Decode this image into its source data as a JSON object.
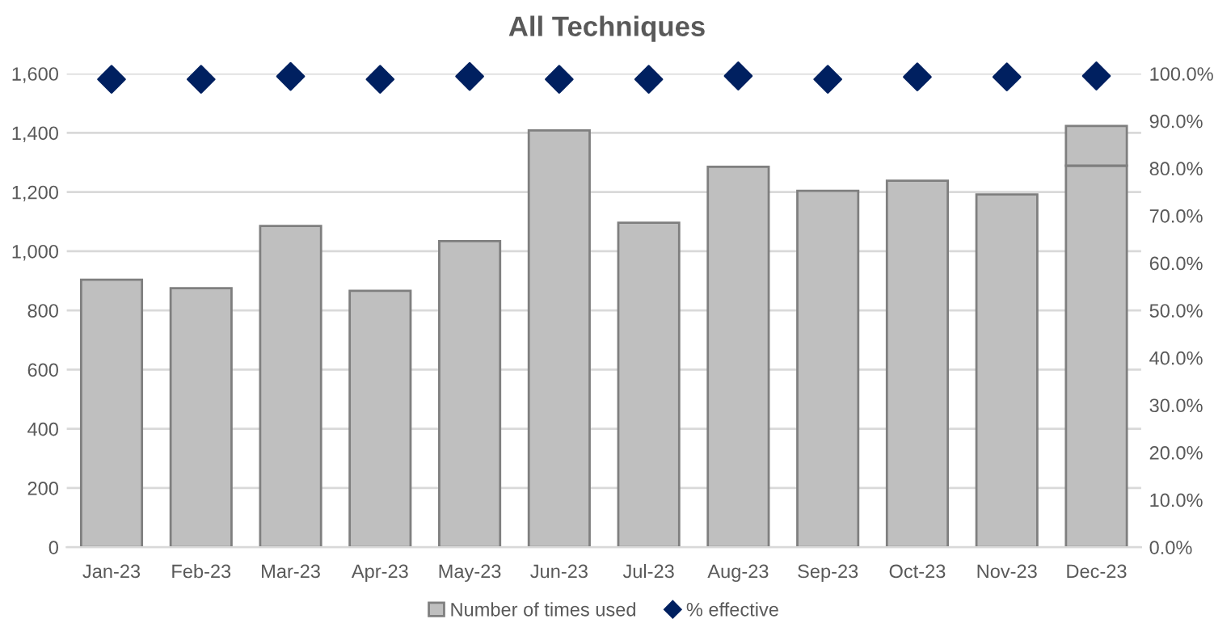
{
  "chart_data": {
    "type": "bar",
    "title": "All Techniques",
    "categories": [
      "Jan-23",
      "Feb-23",
      "Mar-23",
      "Apr-23",
      "May-23",
      "Jun-23",
      "Jul-23",
      "Aug-23",
      "Sep-23",
      "Oct-23",
      "Nov-23",
      "Dec-23"
    ],
    "stacked": true,
    "series": [
      {
        "name": "Number of times used",
        "color": "#bfbfbf",
        "values": [
          904,
          875,
          1085,
          866,
          1034,
          1408,
          1096,
          1285,
          1204,
          1238,
          1192,
          1289
        ]
      },
      {
        "color": "#bfbfbf",
        "values": [
          null,
          null,
          null,
          null,
          null,
          null,
          null,
          null,
          null,
          null,
          null,
          134
        ]
      },
      {
        "name": "% effective",
        "type": "scatter",
        "axis": "y2",
        "marker": "diamond",
        "color": "#002060",
        "values": [
          98.8,
          98.8,
          99.4,
          98.8,
          99.4,
          98.8,
          98.8,
          99.5,
          98.8,
          99.3,
          99.3,
          99.5
        ]
      }
    ],
    "ylim": [
      0,
      1600
    ],
    "yticks": [
      0,
      {
        "value": 200,
        "label": "200"
      },
      {
        "value": 400,
        "label": "400"
      },
      {
        "value": 600,
        "label": "600"
      },
      {
        "value": 800,
        "label": "800"
      },
      {
        "value": 1000,
        "label": "1,000"
      },
      {
        "value": 1200,
        "label": "1,200"
      },
      {
        "value": 1400,
        "label": "1,400"
      },
      {
        "value": 1600,
        "label": "1,600"
      }
    ],
    "y2lim": [
      0,
      100
    ],
    "y2ticks": [
      {
        "value": 0,
        "label": "0.0%"
      },
      {
        "value": 10,
        "label": "10.0%"
      },
      {
        "value": 20,
        "label": "20.0%"
      },
      {
        "value": 30,
        "label": "30.0%"
      },
      {
        "value": 40,
        "label": "40.0%"
      },
      {
        "value": 50,
        "label": "50.0%"
      },
      {
        "value": 60,
        "label": "60.0%"
      },
      {
        "value": 70,
        "label": "70.0%"
      },
      {
        "value": 80,
        "label": "80.0%"
      },
      {
        "value": 90,
        "label": "90.0%"
      },
      {
        "value": 100,
        "label": "100.0%"
      }
    ],
    "grid": "y",
    "legend": "bottom"
  }
}
